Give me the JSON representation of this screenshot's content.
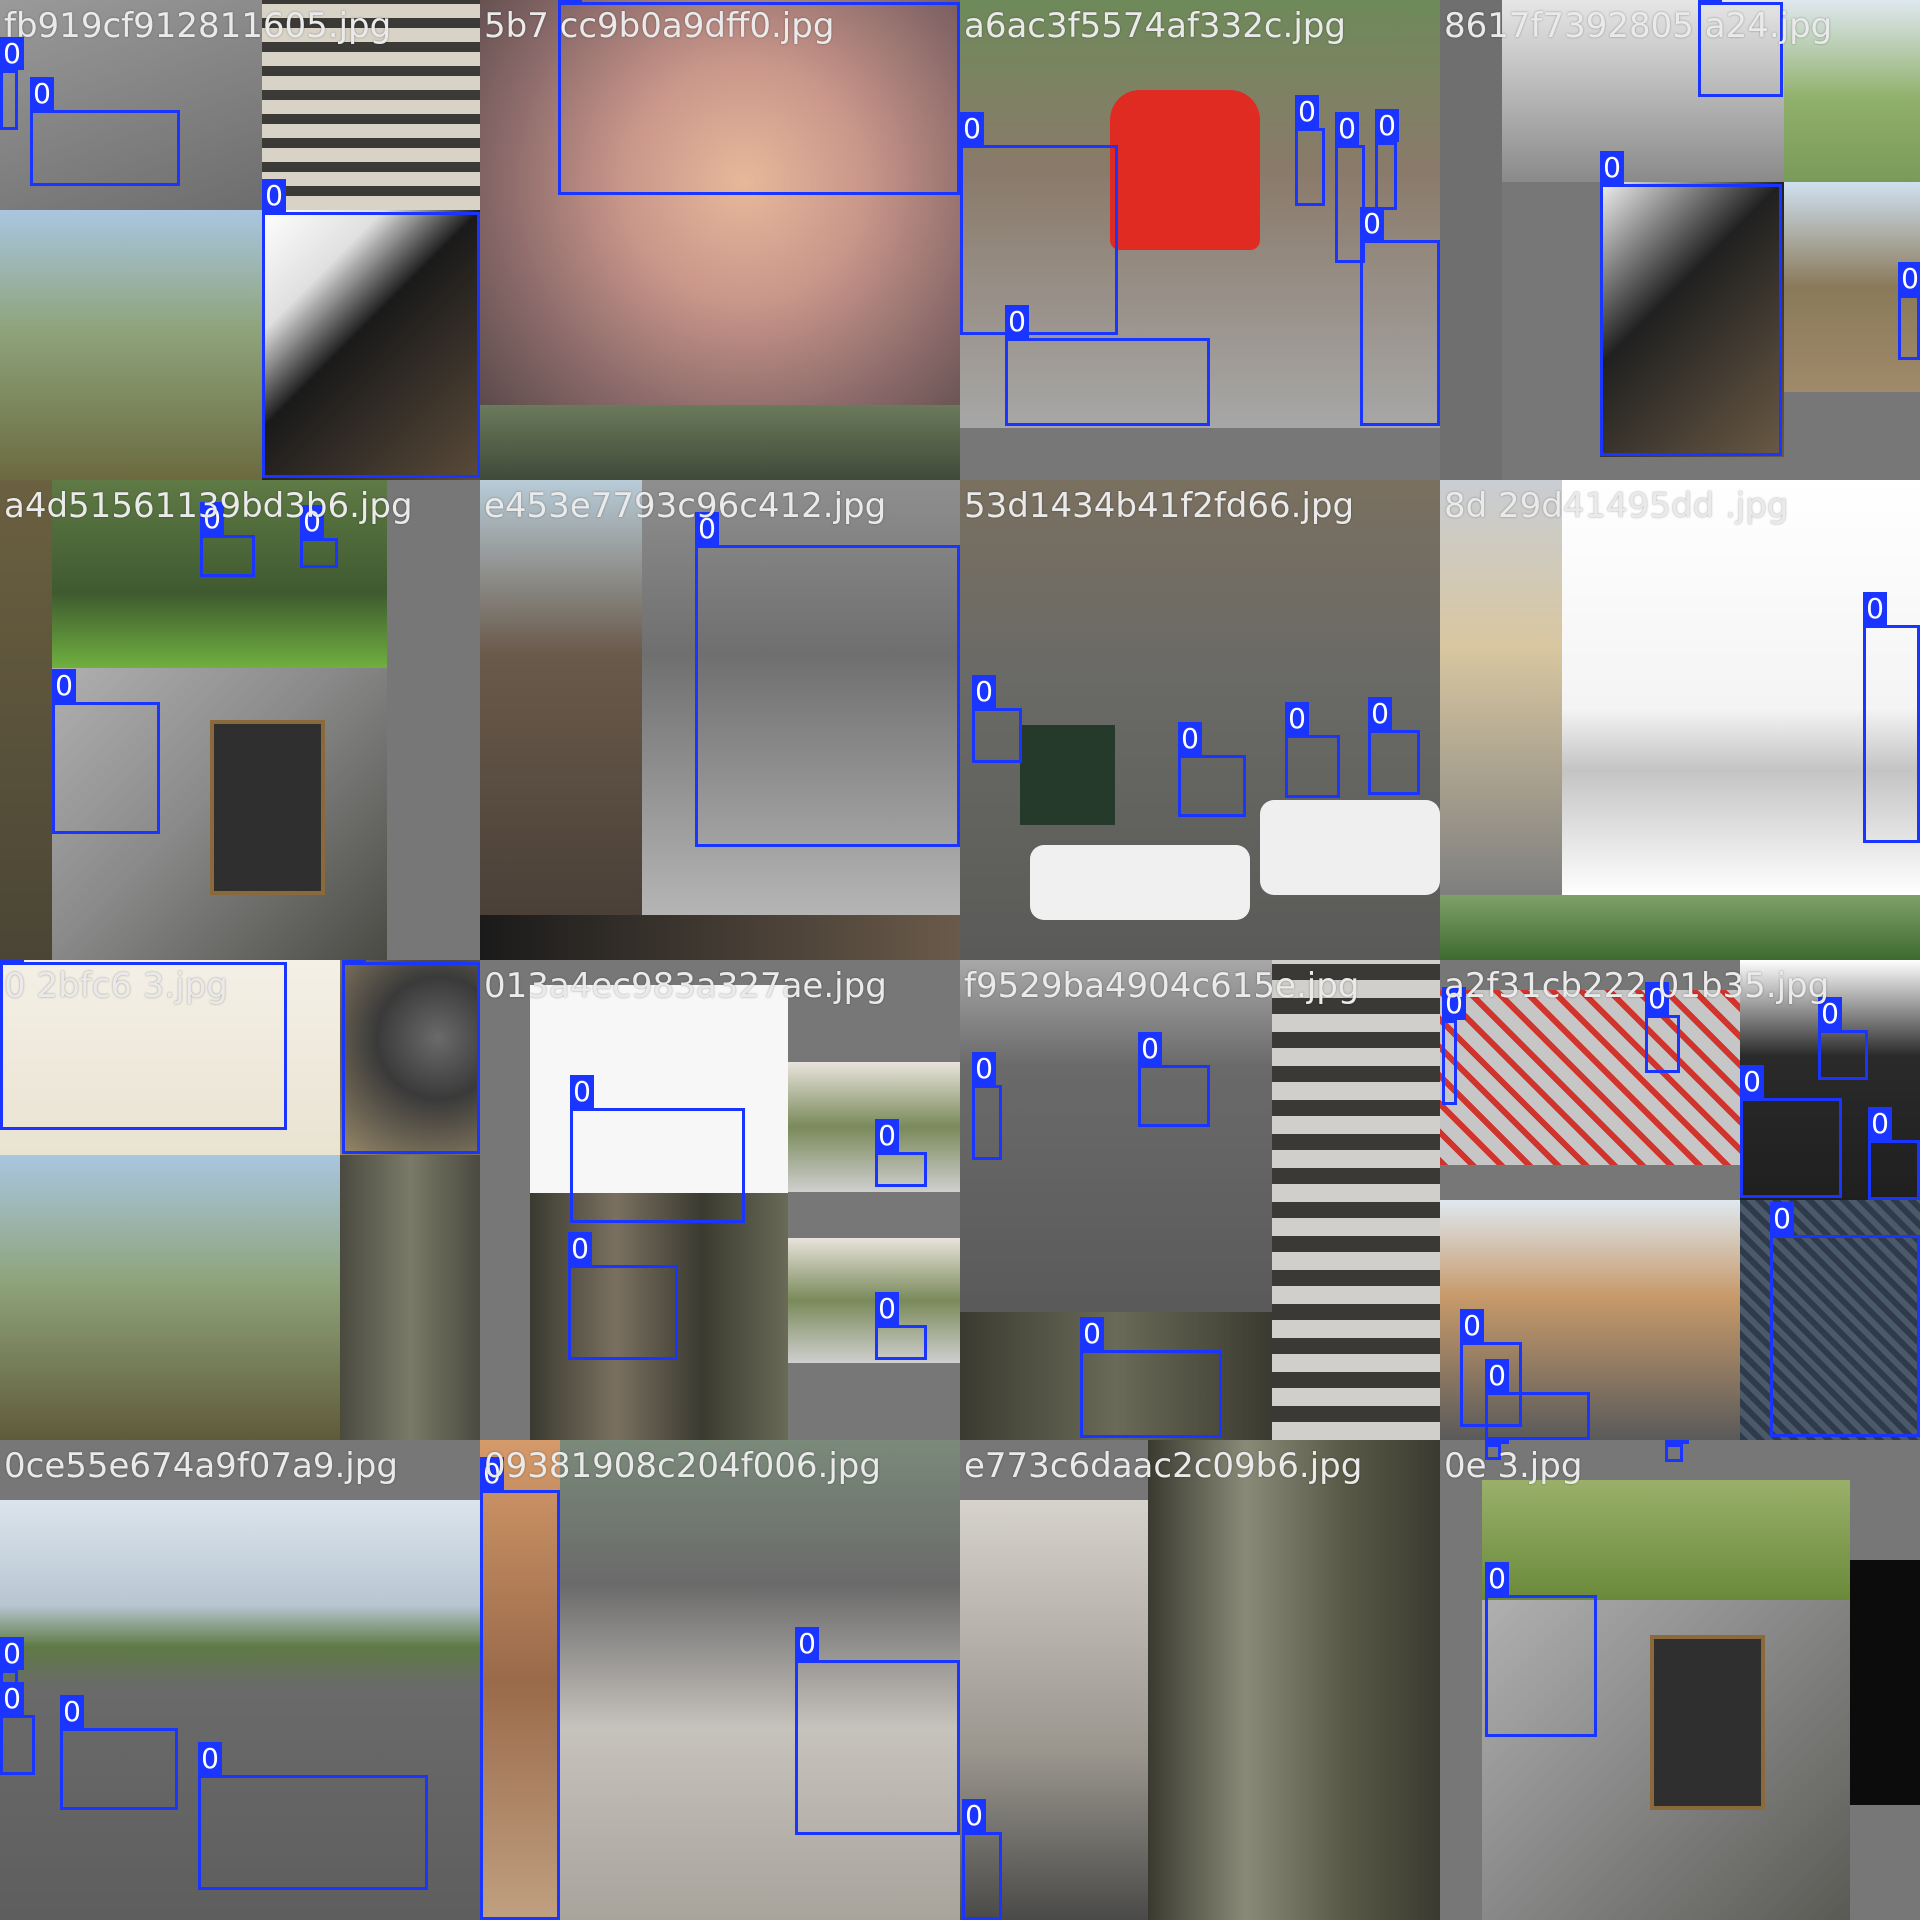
{
  "mosaic": {
    "box_color": "#1a35ff",
    "background_color": "#808080",
    "tiles": [
      {
        "label": "fb919cf912811605.jpg",
        "box_class": "0"
      },
      {
        "label": "5b7 cc9b0a9dff0.jpg",
        "box_class": "0"
      },
      {
        "label": "a6ac3f5574af332c.jpg",
        "box_class": "0"
      },
      {
        "label": "8617f7392805 a24.jpg",
        "box_class": "0"
      },
      {
        "label": "a4d51561139bd3b6.jpg",
        "box_class": "0"
      },
      {
        "label": "e453e7793c96c412.jpg",
        "box_class": "0"
      },
      {
        "label": "53d1434b41f2fd66.jpg",
        "box_class": "0"
      },
      {
        "label": "8d 29d41495dd .jpg",
        "box_class": "0"
      },
      {
        "label": "0 2bfc6 3.jpg",
        "box_class": "0"
      },
      {
        "label": "013a4ec983a327ae.jpg",
        "box_class": "0"
      },
      {
        "label": "f9529ba4904c615e.jpg",
        "box_class": "0"
      },
      {
        "label": "a2f31cb222 01b35.jpg",
        "box_class": "0"
      },
      {
        "label": "0ce55e674a9f07a9.jpg",
        "box_class": "0"
      },
      {
        "label": "09381908c204f006.jpg",
        "box_class": "0"
      },
      {
        "label": "e773c6daac2c09b6.jpg",
        "box_class": "0"
      },
      {
        "label": "0e 3.jpg",
        "box_class": "0"
      }
    ]
  }
}
